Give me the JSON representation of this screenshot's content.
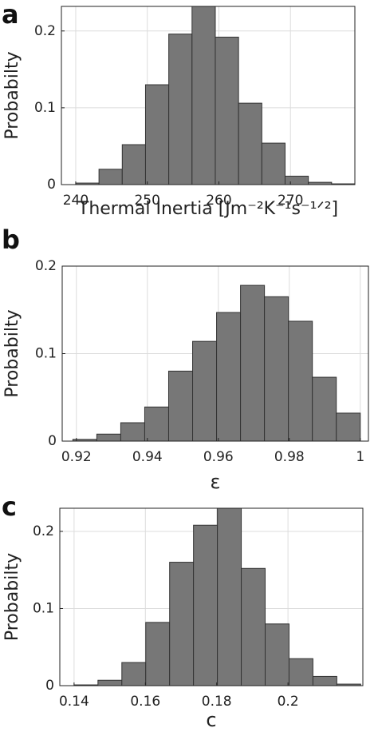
{
  "chart_data": [
    {
      "type": "histogram",
      "panel": "a",
      "ylabel": "Probabilty",
      "xlabel": "Thermal Inertia [Jm⁻²K⁻¹s⁻¹ᐟ²]",
      "bins": [
        240,
        243.25,
        246.5,
        249.75,
        253,
        256.25,
        259.5,
        262.75,
        266,
        269.25,
        272.5,
        275.75,
        279
      ],
      "values": [
        0.002,
        0.02,
        0.052,
        0.13,
        0.196,
        0.24,
        0.192,
        0.106,
        0.054,
        0.011,
        0.003,
        0.001
      ],
      "color": "#777777",
      "xlim": [
        238,
        279
      ],
      "ylim": [
        0,
        0.232
      ],
      "xticks": [
        240,
        250,
        260,
        270
      ],
      "yticks": [
        0,
        0.1,
        0.2
      ],
      "grid": true
    },
    {
      "type": "histogram",
      "panel": "b",
      "ylabel": "Probabilty",
      "xlabel": "ε",
      "bins": [
        0.919,
        0.92575,
        0.9325,
        0.93925,
        0.946,
        0.95275,
        0.9595,
        0.96625,
        0.973,
        0.97975,
        0.9865,
        0.99325,
        1.0
      ],
      "values": [
        0.002,
        0.008,
        0.021,
        0.039,
        0.08,
        0.114,
        0.147,
        0.178,
        0.165,
        0.137,
        0.073,
        0.032
      ],
      "color": "#777777",
      "xlim": [
        0.916,
        1.0023
      ],
      "ylim": [
        0,
        0.2
      ],
      "xticks": [
        0.92,
        0.94,
        0.96,
        0.98,
        1
      ],
      "yticks": [
        0,
        0.1,
        0.2
      ],
      "grid": true
    },
    {
      "type": "histogram",
      "panel": "c",
      "ylabel": "Probabilty",
      "xlabel": "c",
      "bins": [
        0.14,
        0.1467,
        0.1534,
        0.1601,
        0.1668,
        0.1735,
        0.1802,
        0.1869,
        0.1936,
        0.2003,
        0.207,
        0.2137,
        0.2204
      ],
      "values": [
        0.001,
        0.007,
        0.03,
        0.082,
        0.16,
        0.208,
        0.24,
        0.152,
        0.08,
        0.035,
        0.012,
        0.002
      ],
      "color": "#777777",
      "xlim": [
        0.136,
        0.221
      ],
      "ylim": [
        0,
        0.23
      ],
      "xticks": [
        0.14,
        0.16,
        0.18,
        0.2
      ],
      "yticks": [
        0,
        0.1,
        0.2
      ],
      "grid": true
    }
  ]
}
